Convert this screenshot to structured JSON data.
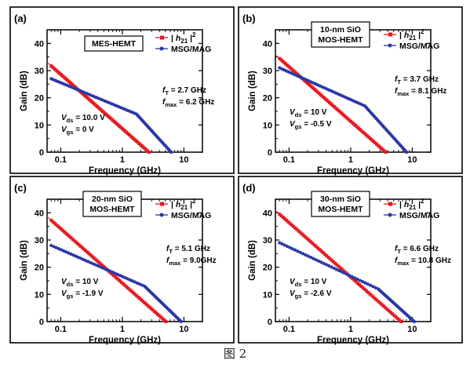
{
  "figure_caption": "图 2",
  "colors": {
    "h21": "#e8191f",
    "msg": "#2b37a6",
    "fit": "#e8191f"
  },
  "chart_data": [
    {
      "type": "line",
      "log_x": true,
      "panel_label": "(a)",
      "device": [
        "MES-HEMT"
      ],
      "xlabel": "Frequency (GHz)",
      "ylabel": "Gain (dB)",
      "xlim": [
        0.06,
        20
      ],
      "ylim": [
        0,
        45
      ],
      "x_ticks": [
        0.1,
        1,
        10
      ],
      "x_tick_labels": [
        "0.1",
        "1",
        "10"
      ],
      "y_ticks": [
        0,
        10,
        20,
        30,
        40
      ],
      "y_tick_labels": [
        "0",
        "10",
        "20",
        "30",
        "40"
      ],
      "legend": [
        "|h21|²",
        "MSG/MAG"
      ],
      "ft_line": "fT = 2.7 GHz",
      "fmax_line": "fmax = 6.2 GHz",
      "bias_lines": [
        "Vds = 10.0 V",
        "Vgs = 0 V"
      ],
      "series": [
        {
          "name": "|h21|²",
          "color": "#e8191f",
          "kind": "h21",
          "ft": 2.7,
          "f_start": 0.07
        },
        {
          "name": "MSG/MAG",
          "color": "#2b37a6",
          "kind": "msg",
          "fmax": 6.2,
          "f_start": 0.07,
          "g_start": 27,
          "f_break": 1.7,
          "g_break": 14
        }
      ]
    },
    {
      "type": "line",
      "log_x": true,
      "panel_label": "(b)",
      "device": [
        "10-nm SiO",
        "MOS-HEMT"
      ],
      "xlabel": "Frequency (GHz)",
      "ylabel": "Gain (dB)",
      "xlim": [
        0.06,
        20
      ],
      "ylim": [
        0,
        45
      ],
      "x_ticks": [
        0.1,
        1,
        10
      ],
      "x_tick_labels": [
        "0.1",
        "1",
        "10"
      ],
      "y_ticks": [
        0,
        10,
        20,
        30,
        40
      ],
      "y_tick_labels": [
        "0",
        "10",
        "20",
        "30",
        "40"
      ],
      "legend": [
        "|h21|²",
        "MSG/MAG"
      ],
      "ft_line": "fT = 3.7 GHz",
      "fmax_line": "fmax = 8.1 GHz",
      "bias_lines": [
        "Vds = 10 V",
        "Vgs = -0.5 V"
      ],
      "series": [
        {
          "name": "|h21|²",
          "color": "#e8191f",
          "kind": "h21",
          "ft": 3.7,
          "f_start": 0.07
        },
        {
          "name": "MSG/MAG",
          "color": "#2b37a6",
          "kind": "msg",
          "fmax": 8.1,
          "f_start": 0.07,
          "g_start": 31,
          "f_break": 1.7,
          "g_break": 17
        }
      ]
    },
    {
      "type": "line",
      "log_x": true,
      "panel_label": "(c)",
      "device": [
        "20-nm SiO",
        "MOS-HEMT"
      ],
      "xlabel": "Frequency (GHz)",
      "ylabel": "Gain (dB)",
      "xlim": [
        0.06,
        20
      ],
      "ylim": [
        0,
        45
      ],
      "x_ticks": [
        0.1,
        1,
        10
      ],
      "x_tick_labels": [
        "0.1",
        "1",
        "10"
      ],
      "y_ticks": [
        0,
        10,
        20,
        30,
        40
      ],
      "y_tick_labels": [
        "0",
        "10",
        "20",
        "30",
        "40"
      ],
      "legend": [
        "|h21|²",
        "MSG/MAG"
      ],
      "ft_line": "fT = 5.1 GHz",
      "fmax_line": "fmax = 9.0GHz",
      "bias_lines": [
        "Vds = 10 V",
        "Vgs = -1.9 V"
      ],
      "series": [
        {
          "name": "|h21|²",
          "color": "#e8191f",
          "kind": "h21",
          "ft": 5.1,
          "f_start": 0.07
        },
        {
          "name": "MSG/MAG",
          "color": "#2b37a6",
          "kind": "msg",
          "fmax": 9.0,
          "f_start": 0.07,
          "g_start": 28,
          "f_break": 2.3,
          "g_break": 13
        }
      ]
    },
    {
      "type": "line",
      "log_x": true,
      "panel_label": "(d)",
      "device": [
        "30-nm SiO",
        "MOS-HEMT"
      ],
      "xlabel": "Frequency (GHz)",
      "ylabel": "Gain (dB)",
      "xlim": [
        0.06,
        20
      ],
      "ylim": [
        0,
        45
      ],
      "x_ticks": [
        0.1,
        1,
        10
      ],
      "x_tick_labels": [
        "0.1",
        "1",
        "10"
      ],
      "y_ticks": [
        0,
        10,
        20,
        30,
        40
      ],
      "y_tick_labels": [
        "0",
        "10",
        "20",
        "30",
        "40"
      ],
      "legend": [
        "|h21|²",
        "MSG/MAG"
      ],
      "ft_line": "fT = 6.6 GHz",
      "fmax_line": "fmax = 10.8 GHz",
      "bias_lines": [
        "Vds = 10 V",
        "Vgs = -2.6 V"
      ],
      "series": [
        {
          "name": "|h21|²",
          "color": "#e8191f",
          "kind": "h21",
          "ft": 6.6,
          "f_start": 0.07
        },
        {
          "name": "MSG/MAG",
          "color": "#2b37a6",
          "kind": "msg",
          "fmax": 10.8,
          "f_start": 0.07,
          "g_start": 29,
          "f_break": 2.8,
          "g_break": 12
        }
      ]
    }
  ]
}
